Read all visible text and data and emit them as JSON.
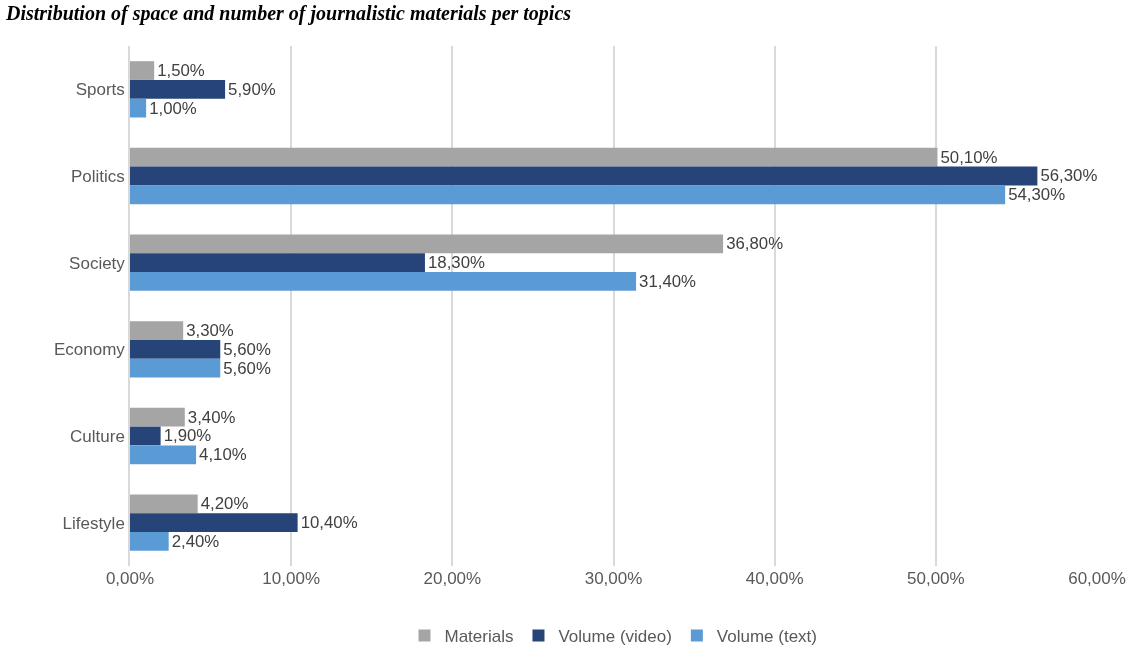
{
  "chart_data": {
    "type": "bar",
    "orientation": "horizontal",
    "title": "Distribution of space and number of journalistic materials per topics",
    "categories": [
      "Sports",
      "Politics",
      "Society",
      "Economy",
      "Culture",
      "Lifestyle"
    ],
    "series": [
      {
        "name": "Materials",
        "color": "#a5a5a5",
        "values": [
          1.5,
          50.1,
          36.8,
          3.3,
          3.4,
          4.2
        ],
        "value_labels": [
          "1,50%",
          "50,10%",
          "36,80%",
          "3,30%",
          "3,40%",
          "4,20%"
        ]
      },
      {
        "name": "Volume (video)",
        "color": "#264478",
        "values": [
          5.9,
          56.3,
          18.3,
          5.6,
          1.9,
          10.4
        ],
        "value_labels": [
          "5,90%",
          "56,30%",
          "18,30%",
          "5,60%",
          "1,90%",
          "10,40%"
        ]
      },
      {
        "name": "Volume (text)",
        "color": "#5b9bd5",
        "values": [
          1.0,
          54.3,
          31.4,
          5.6,
          4.1,
          2.4
        ],
        "value_labels": [
          "1,00%",
          "54,30%",
          "31,40%",
          "5,60%",
          "4,10%",
          "2,40%"
        ]
      }
    ],
    "xlim": [
      0,
      60
    ],
    "xticks": [
      {
        "value": 0,
        "label": "0,00%"
      },
      {
        "value": 10,
        "label": "10,00%"
      },
      {
        "value": 20,
        "label": "20,00%"
      },
      {
        "value": 30,
        "label": "30,00%"
      },
      {
        "value": 40,
        "label": "40,00%"
      },
      {
        "value": 50,
        "label": "50,00%"
      },
      {
        "value": 60,
        "label": "60,00%"
      }
    ],
    "grid": "x",
    "legend": "bottom"
  }
}
